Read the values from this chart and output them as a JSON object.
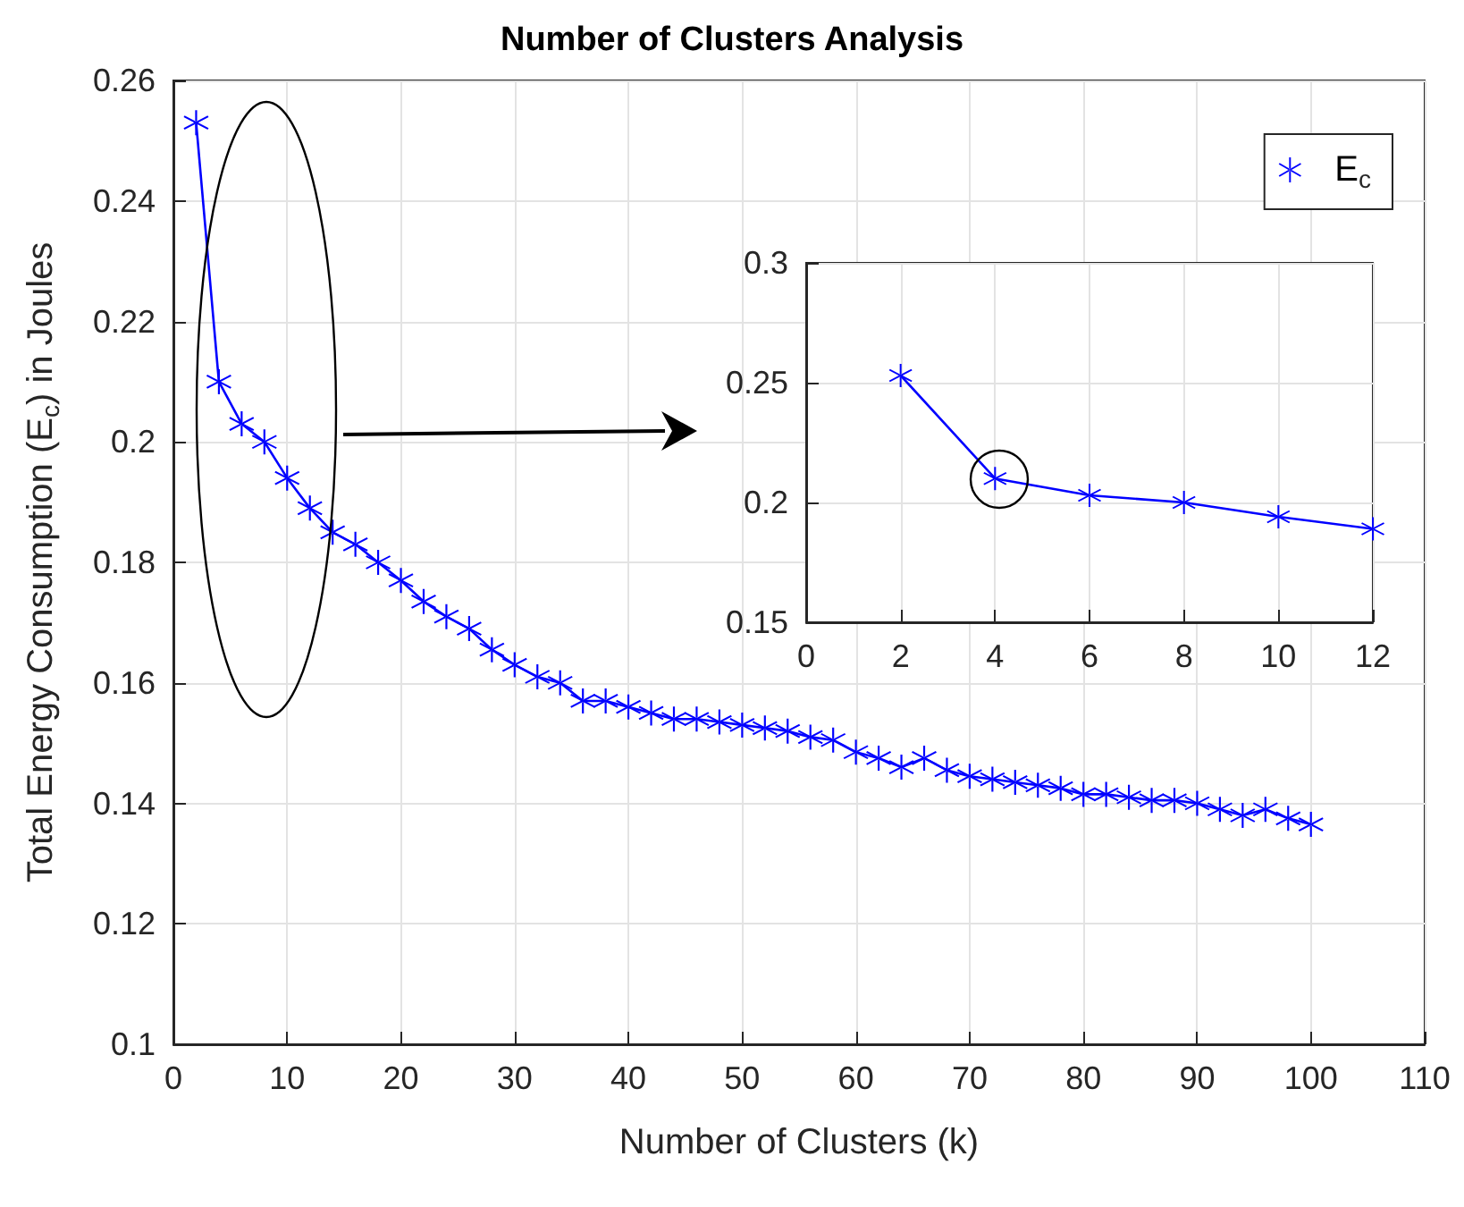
{
  "chart_data": [
    {
      "type": "line",
      "title": "Number of Clusters Analysis",
      "xlabel": "Number of Clusters (k)",
      "ylabel": "Total Energy Consumption (E$_{c}$) in Joules",
      "x": [
        2,
        4,
        6,
        8,
        10,
        12,
        14,
        16,
        18,
        20,
        22,
        24,
        26,
        28,
        30,
        32,
        34,
        36,
        38,
        40,
        42,
        44,
        46,
        48,
        50,
        52,
        54,
        56,
        58,
        60,
        62,
        64,
        66,
        68,
        70,
        72,
        74,
        76,
        78,
        80,
        82,
        84,
        86,
        88,
        90,
        92,
        94,
        96,
        98,
        100
      ],
      "series": [
        {
          "name": "E$_{c}$",
          "color": "#0000ff",
          "values": [
            0.253,
            0.21,
            0.203,
            0.2,
            0.194,
            0.189,
            0.185,
            0.183,
            0.18,
            0.177,
            0.1735,
            0.171,
            0.169,
            0.1655,
            0.163,
            0.161,
            0.16,
            0.157,
            0.157,
            0.156,
            0.155,
            0.154,
            0.154,
            0.1535,
            0.153,
            0.1525,
            0.152,
            0.151,
            0.1505,
            0.1485,
            0.1475,
            0.146,
            0.1475,
            0.1455,
            0.1445,
            0.144,
            0.1435,
            0.143,
            0.1425,
            0.1415,
            0.1415,
            0.141,
            0.1405,
            0.1405,
            0.14,
            0.139,
            0.138,
            0.139,
            0.1375,
            0.1365
          ]
        }
      ],
      "xlim": [
        0,
        110
      ],
      "xticks": [
        0,
        10,
        20,
        30,
        40,
        50,
        60,
        70,
        80,
        90,
        100,
        110
      ],
      "ylim": [
        0.1,
        0.26
      ],
      "yticks": [
        0.1,
        0.12,
        0.14,
        0.16,
        0.18,
        0.2,
        0.22,
        0.24,
        0.26
      ],
      "grid": true,
      "legend": "top right",
      "marker": "cross"
    },
    {
      "type": "line",
      "x": [
        2,
        4,
        6,
        8,
        10,
        12
      ],
      "series": [
        {
          "color": "#0000ff",
          "values": [
            0.253,
            0.21,
            0.203,
            0.2,
            0.194,
            0.189
          ]
        }
      ],
      "xlim": [
        0,
        12
      ],
      "xticks": [
        0,
        2,
        4,
        6,
        8,
        10,
        12
      ],
      "ylim": [
        0.15,
        0.3
      ],
      "yticks": [
        0.15,
        0.2,
        0.25,
        0.3
      ],
      "grid": true,
      "marker": "cross"
    }
  ]
}
